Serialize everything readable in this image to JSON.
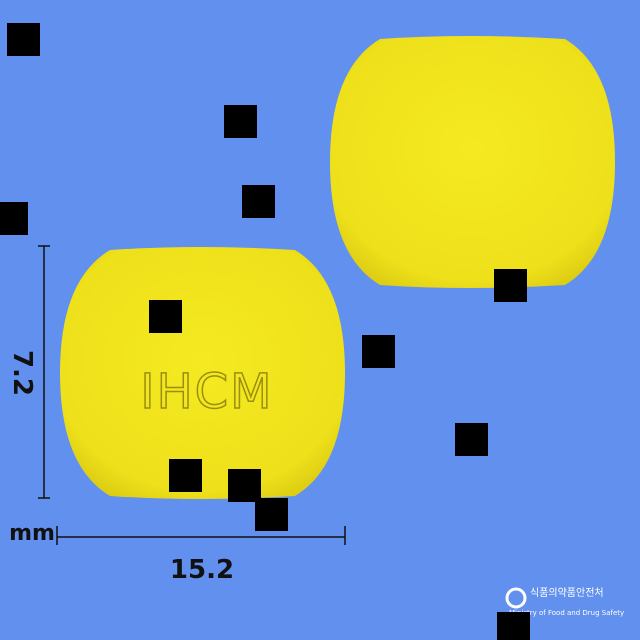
{
  "pill": {
    "imprint": "IHCM"
  },
  "dimensions": {
    "height": "7.2",
    "unit": "mm",
    "width": "15.2"
  },
  "logo": {
    "name_ko": "식품의약품안전처",
    "name_en": "Ministry of Food and Drug Safety"
  }
}
